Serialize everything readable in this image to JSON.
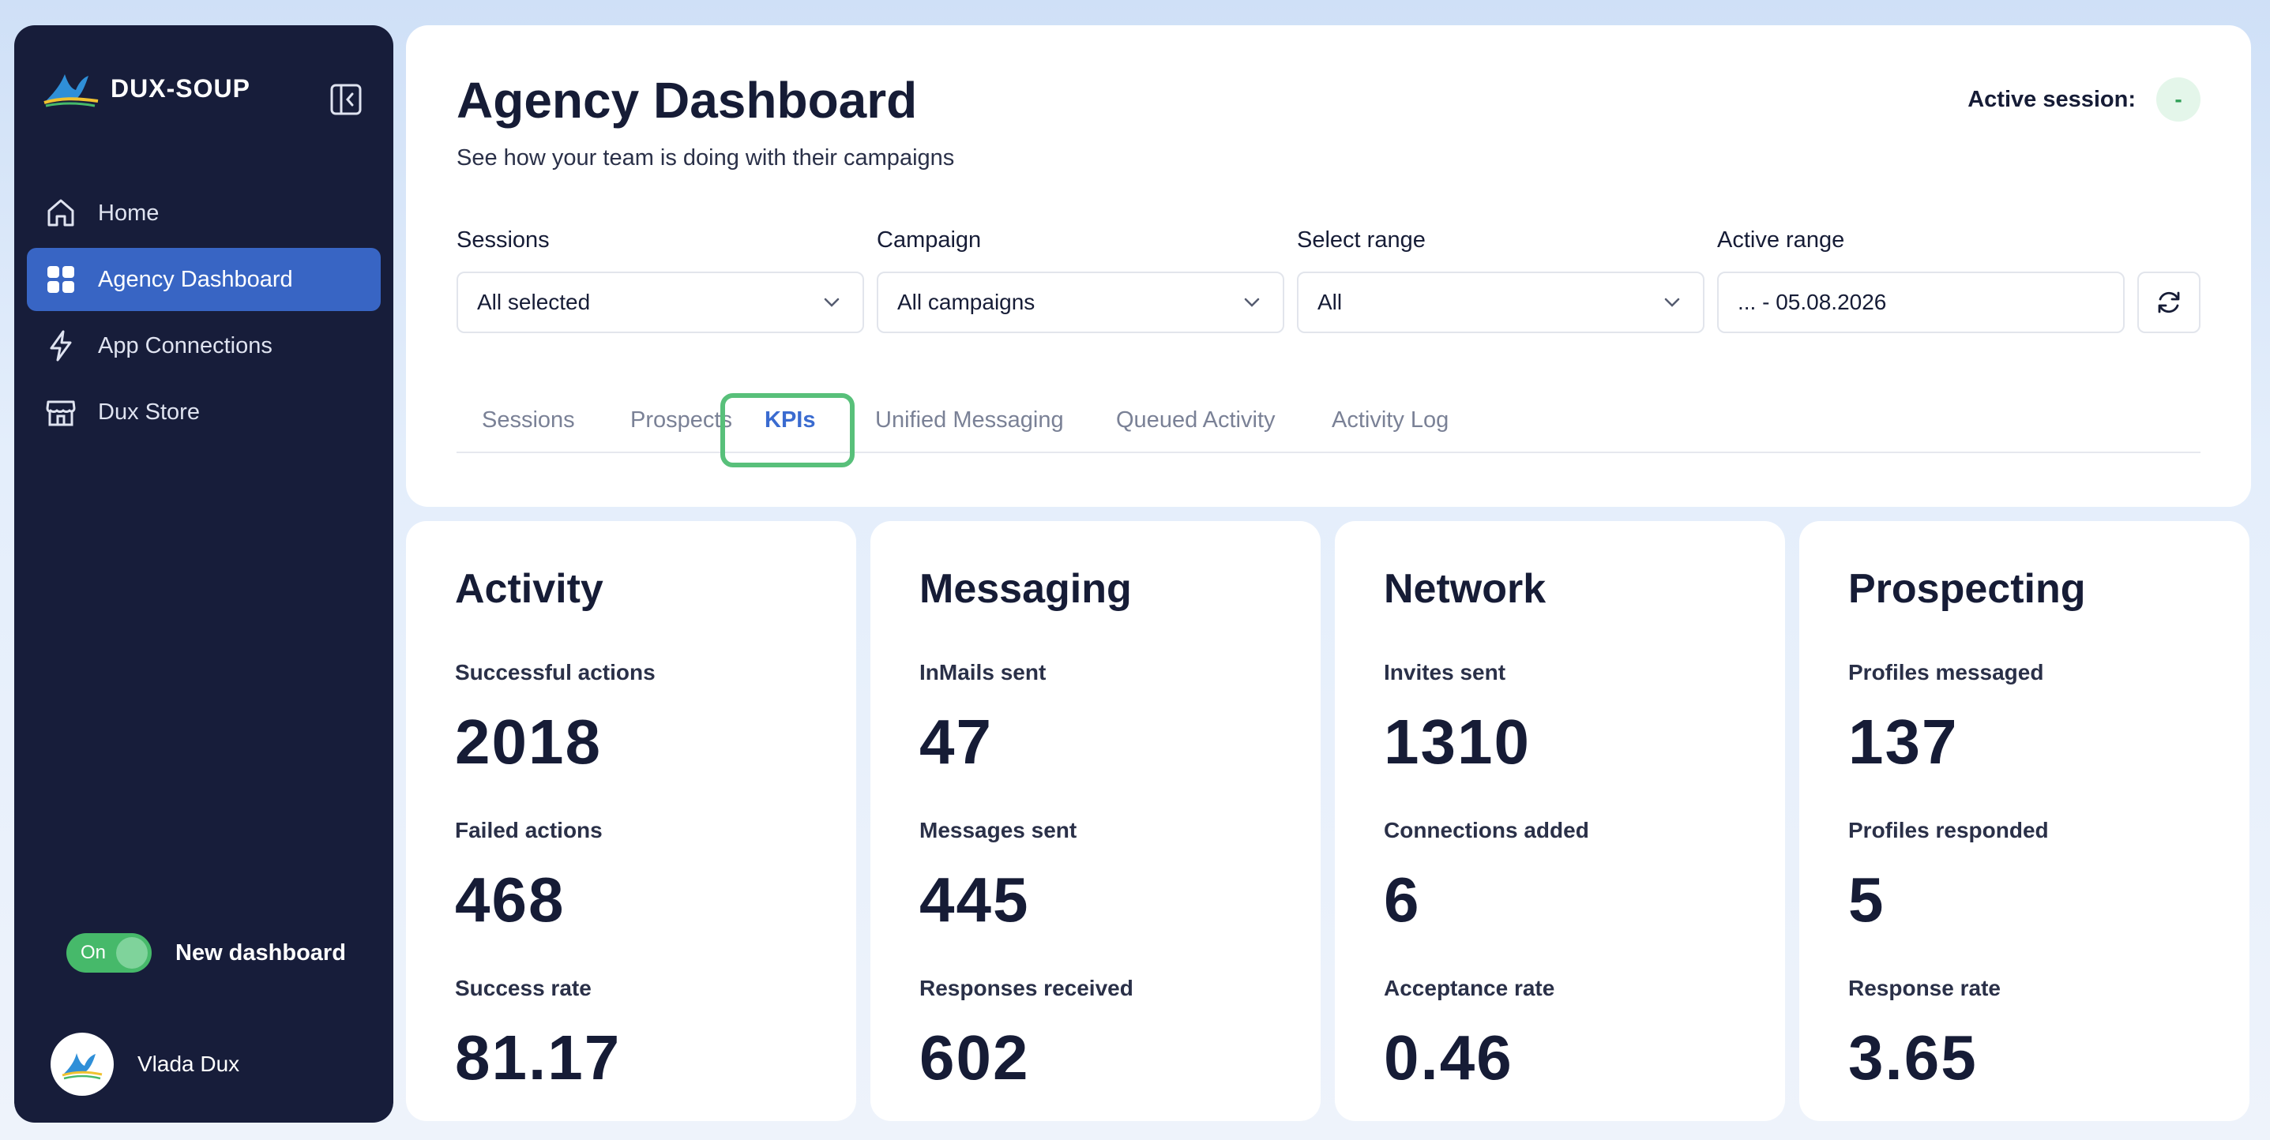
{
  "brand": {
    "name": "DUX-SOUP"
  },
  "sidebar": {
    "items": [
      {
        "label": "Home",
        "icon": "home-icon"
      },
      {
        "label": "Agency Dashboard",
        "icon": "grid-icon",
        "active": true
      },
      {
        "label": "App Connections",
        "icon": "bolt-icon"
      },
      {
        "label": "Dux Store",
        "icon": "store-icon"
      }
    ],
    "toggle": {
      "state_label": "On",
      "label": "New dashboard",
      "on": true
    },
    "user": {
      "name": "Vlada Dux"
    }
  },
  "header": {
    "title": "Agency Dashboard",
    "subtitle": "See how your team is doing with their campaigns",
    "active_session_label": "Active session:",
    "active_session_value": "-"
  },
  "filters": {
    "sessions": {
      "label": "Sessions",
      "value": "All selected"
    },
    "campaign": {
      "label": "Campaign",
      "value": "All campaigns"
    },
    "select_range": {
      "label": "Select range",
      "value": "All"
    },
    "active_range": {
      "label": "Active range",
      "value": "... - 05.08.2026"
    }
  },
  "tabs": [
    {
      "label": "Sessions"
    },
    {
      "label": "Prospects"
    },
    {
      "label": "KPIs",
      "active": true
    },
    {
      "label": "Unified Messaging"
    },
    {
      "label": "Queued Activity"
    },
    {
      "label": "Activity Log"
    }
  ],
  "cards": [
    {
      "title": "Activity",
      "metrics": [
        {
          "label": "Successful actions",
          "value": "2018"
        },
        {
          "label": "Failed actions",
          "value": "468"
        },
        {
          "label": "Success rate",
          "value": "81.17"
        }
      ]
    },
    {
      "title": "Messaging",
      "metrics": [
        {
          "label": "InMails sent",
          "value": "47"
        },
        {
          "label": "Messages sent",
          "value": "445"
        },
        {
          "label": "Responses received",
          "value": "602"
        }
      ]
    },
    {
      "title": "Network",
      "metrics": [
        {
          "label": "Invites sent",
          "value": "1310"
        },
        {
          "label": "Connections added",
          "value": "6"
        },
        {
          "label": "Acceptance rate",
          "value": "0.46"
        }
      ]
    },
    {
      "title": "Prospecting",
      "metrics": [
        {
          "label": "Profiles messaged",
          "value": "137"
        },
        {
          "label": "Profiles responded",
          "value": "5"
        },
        {
          "label": "Response rate",
          "value": "3.65"
        }
      ]
    }
  ],
  "colors": {
    "sidebar_bg": "#171d3a",
    "accent": "#3865c4",
    "tab_highlight": "#58c07a",
    "toggle_on": "#46b96a"
  }
}
